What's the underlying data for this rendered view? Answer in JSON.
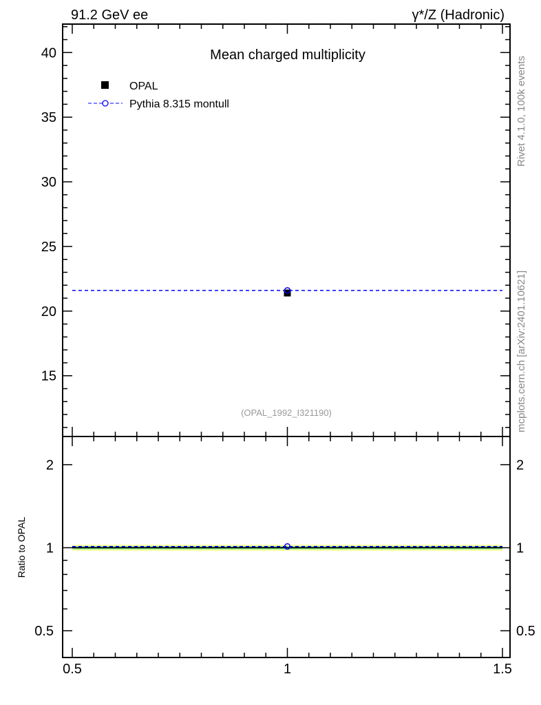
{
  "chart_data": {
    "type": "scatter",
    "title": "Mean charged multiplicity",
    "top_left_label": "91.2 GeV ee",
    "top_right_label": "γ*/Z (Hadronic)",
    "side_label_top": "Rivet 4.1.0,  100k events",
    "side_label_bottom": "mcplots.cern.ch [arXiv:2401.10621]",
    "analysis_label": "(OPAL_1992_I321190)",
    "xlim": [
      0.5,
      1.5
    ],
    "x_ticks": [
      "0.5",
      "1",
      "1.5"
    ],
    "main": {
      "ylim": [
        10.3,
        42.2
      ],
      "y_ticks": [
        "15",
        "20",
        "25",
        "30",
        "35",
        "40"
      ],
      "series": [
        {
          "name": "OPAL",
          "x": [
            1.0
          ],
          "y": [
            21.4
          ],
          "color": "#000000",
          "marker": "filled-square"
        },
        {
          "name": "Pythia 8.315 montull",
          "x": [
            1.0
          ],
          "y": [
            21.6
          ],
          "color": "#0000ff",
          "marker": "open-circle",
          "line": "dashed"
        }
      ]
    },
    "ratio": {
      "ylabel": "Ratio to OPAL",
      "scale": "log",
      "ylim": [
        0.4,
        2.53
      ],
      "y_ticks": [
        "0.5",
        "1",
        "2"
      ],
      "band_yellow": [
        0.975,
        1.025
      ],
      "band_green": [
        0.985,
        1.015
      ],
      "band_colors": {
        "yellow": "#ffff99",
        "green": "#99ff99"
      },
      "pythia_ratio": 1.01
    }
  }
}
